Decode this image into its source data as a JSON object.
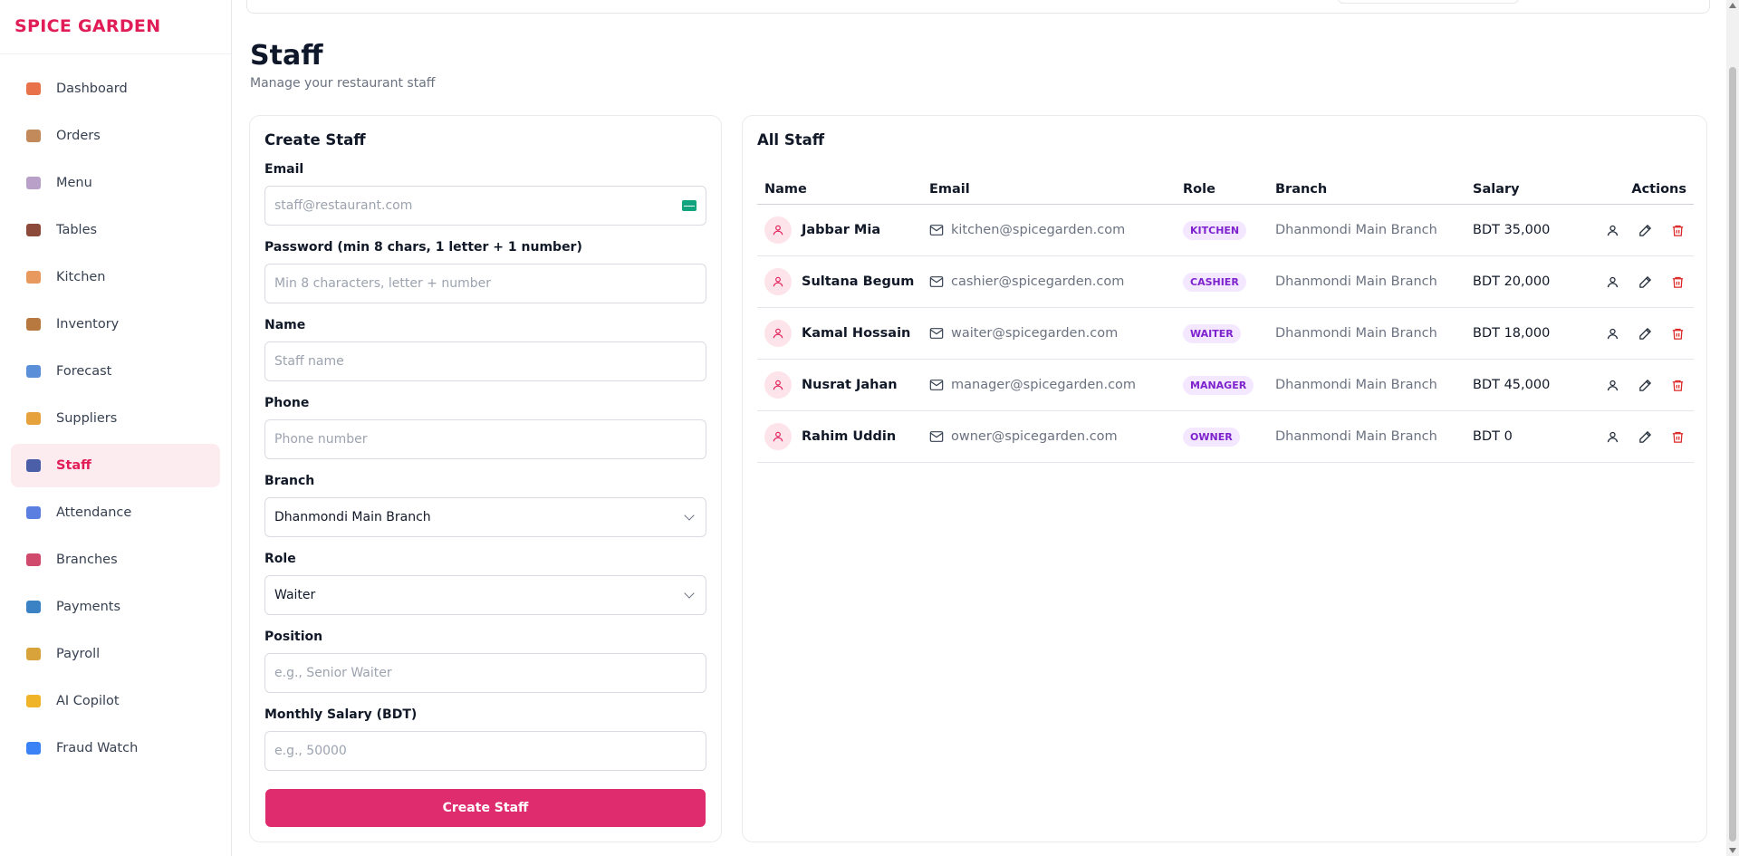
{
  "brand": "SPICE GARDEN",
  "sidebar": {
    "items": [
      {
        "label": "Dashboard",
        "icon": "house-icon",
        "color": "#e8734a"
      },
      {
        "label": "Orders",
        "icon": "clipboard-icon",
        "color": "#c28a5a"
      },
      {
        "label": "Menu",
        "icon": "plate-icon",
        "color": "#b9a0c9"
      },
      {
        "label": "Tables",
        "icon": "chair-icon",
        "color": "#8b4a3a"
      },
      {
        "label": "Kitchen",
        "icon": "chef-icon",
        "color": "#e89a5e"
      },
      {
        "label": "Inventory",
        "icon": "package-icon",
        "color": "#b7793f"
      },
      {
        "label": "Forecast",
        "icon": "chart-icon",
        "color": "#5b8fd8"
      },
      {
        "label": "Suppliers",
        "icon": "truck-icon",
        "color": "#e6a23c"
      },
      {
        "label": "Staff",
        "icon": "people-icon",
        "color": "#4b5ea8"
      },
      {
        "label": "Attendance",
        "icon": "calendar-icon",
        "color": "#5b7fe0"
      },
      {
        "label": "Branches",
        "icon": "store-icon",
        "color": "#d04a6e"
      },
      {
        "label": "Payments",
        "icon": "credit-card-icon",
        "color": "#3b82c4"
      },
      {
        "label": "Payroll",
        "icon": "money-bag-icon",
        "color": "#d7a33a"
      },
      {
        "label": "AI Copilot",
        "icon": "sparkles-icon",
        "color": "#f0b429"
      },
      {
        "label": "Fraud Watch",
        "icon": "shield-icon",
        "color": "#3b82f6"
      }
    ],
    "active": "Staff"
  },
  "header": {
    "title": "Staff",
    "subtitle": "Manage your restaurant staff"
  },
  "create": {
    "title": "Create Staff",
    "email_label": "Email",
    "email_placeholder": "staff@restaurant.com",
    "password_label": "Password (min 8 chars, 1 letter + 1 number)",
    "password_placeholder": "Min 8 characters, letter + number",
    "name_label": "Name",
    "name_placeholder": "Staff name",
    "phone_label": "Phone",
    "phone_placeholder": "Phone number",
    "branch_label": "Branch",
    "branch_value": "Dhanmondi Main Branch",
    "role_label": "Role",
    "role_value": "Waiter",
    "position_label": "Position",
    "position_placeholder": "e.g., Senior Waiter",
    "salary_label": "Monthly Salary (BDT)",
    "salary_placeholder": "e.g., 50000",
    "submit_label": "Create Staff"
  },
  "list": {
    "title": "All Staff",
    "columns": [
      "Name",
      "Email",
      "Role",
      "Branch",
      "Salary",
      "Actions"
    ],
    "rows": [
      {
        "name": "Jabbar Mia",
        "email": "kitchen@spicegarden.com",
        "role": "KITCHEN",
        "branch": "Dhanmondi Main Branch",
        "salary": "BDT 35,000"
      },
      {
        "name": "Sultana Begum",
        "email": "cashier@spicegarden.com",
        "role": "CASHIER",
        "branch": "Dhanmondi Main Branch",
        "salary": "BDT 20,000"
      },
      {
        "name": "Kamal Hossain",
        "email": "waiter@spicegarden.com",
        "role": "WAITER",
        "branch": "Dhanmondi Main Branch",
        "salary": "BDT 18,000"
      },
      {
        "name": "Nusrat Jahan",
        "email": "manager@spicegarden.com",
        "role": "MANAGER",
        "branch": "Dhanmondi Main Branch",
        "salary": "BDT 45,000"
      },
      {
        "name": "Rahim Uddin",
        "email": "owner@spicegarden.com",
        "role": "OWNER",
        "branch": "Dhanmondi Main Branch",
        "salary": "BDT 0"
      }
    ]
  },
  "colors": {
    "brand": "#e11d58",
    "button": "#df2c6e",
    "delete": "#dc2626",
    "role_badge_bg": "#f3e8ff",
    "role_badge_text": "#7e22ce"
  }
}
